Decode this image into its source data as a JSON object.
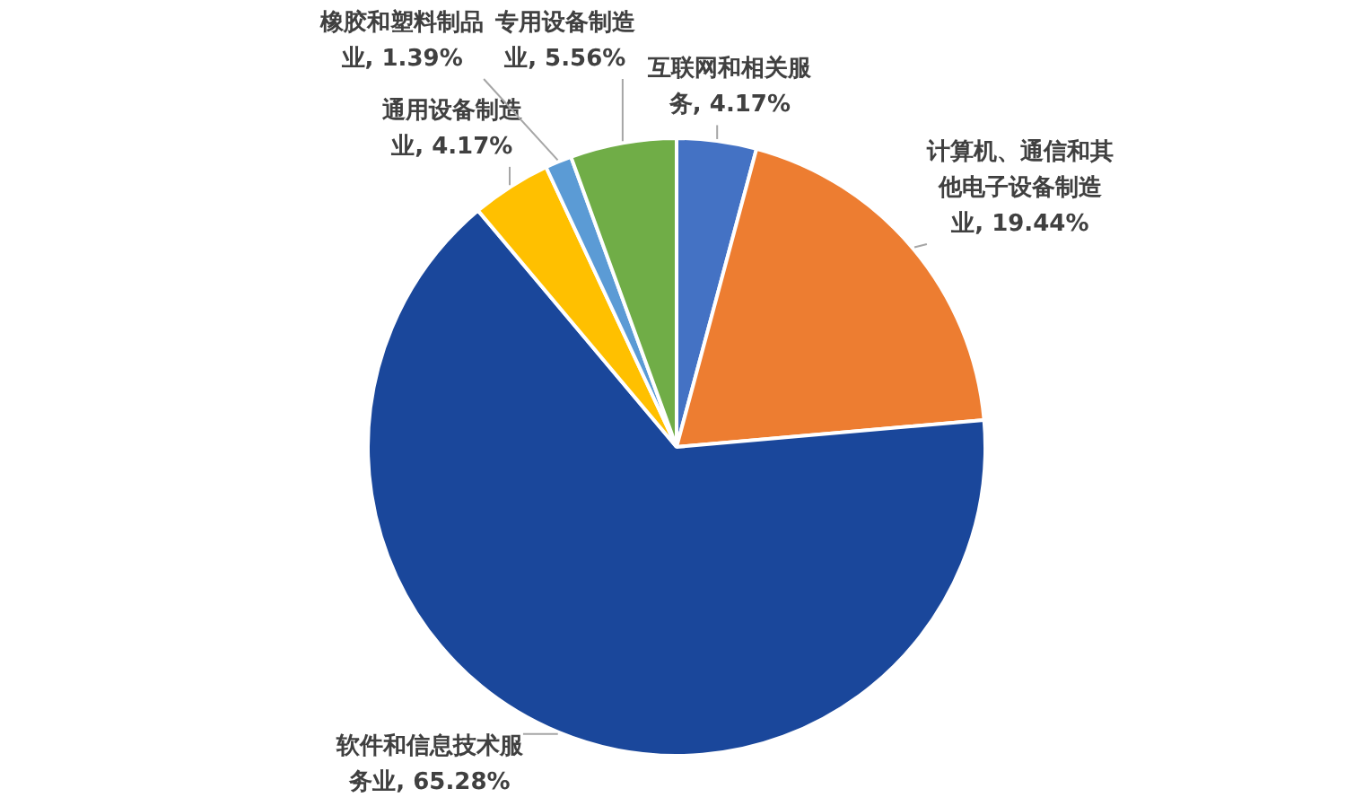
{
  "chart_data": {
    "type": "pie",
    "categories": [
      "互联网和相关服务",
      "计算机、通信和其他电子设备制造业",
      "软件和信息技术服务业",
      "通用设备制造业",
      "橡胶和塑料制品业",
      "专用设备制造业"
    ],
    "values": [
      4.17,
      19.44,
      65.28,
      4.17,
      1.39,
      5.56
    ],
    "value_labels": [
      "4.17%",
      "19.44%",
      "65.28%",
      "4.17%",
      "1.39%",
      "5.56%"
    ],
    "colors": [
      "#4472c4",
      "#ed7d31",
      "#1a479b",
      "#ffc000",
      "#5b9bd5",
      "#70ad47"
    ],
    "legend": false
  }
}
